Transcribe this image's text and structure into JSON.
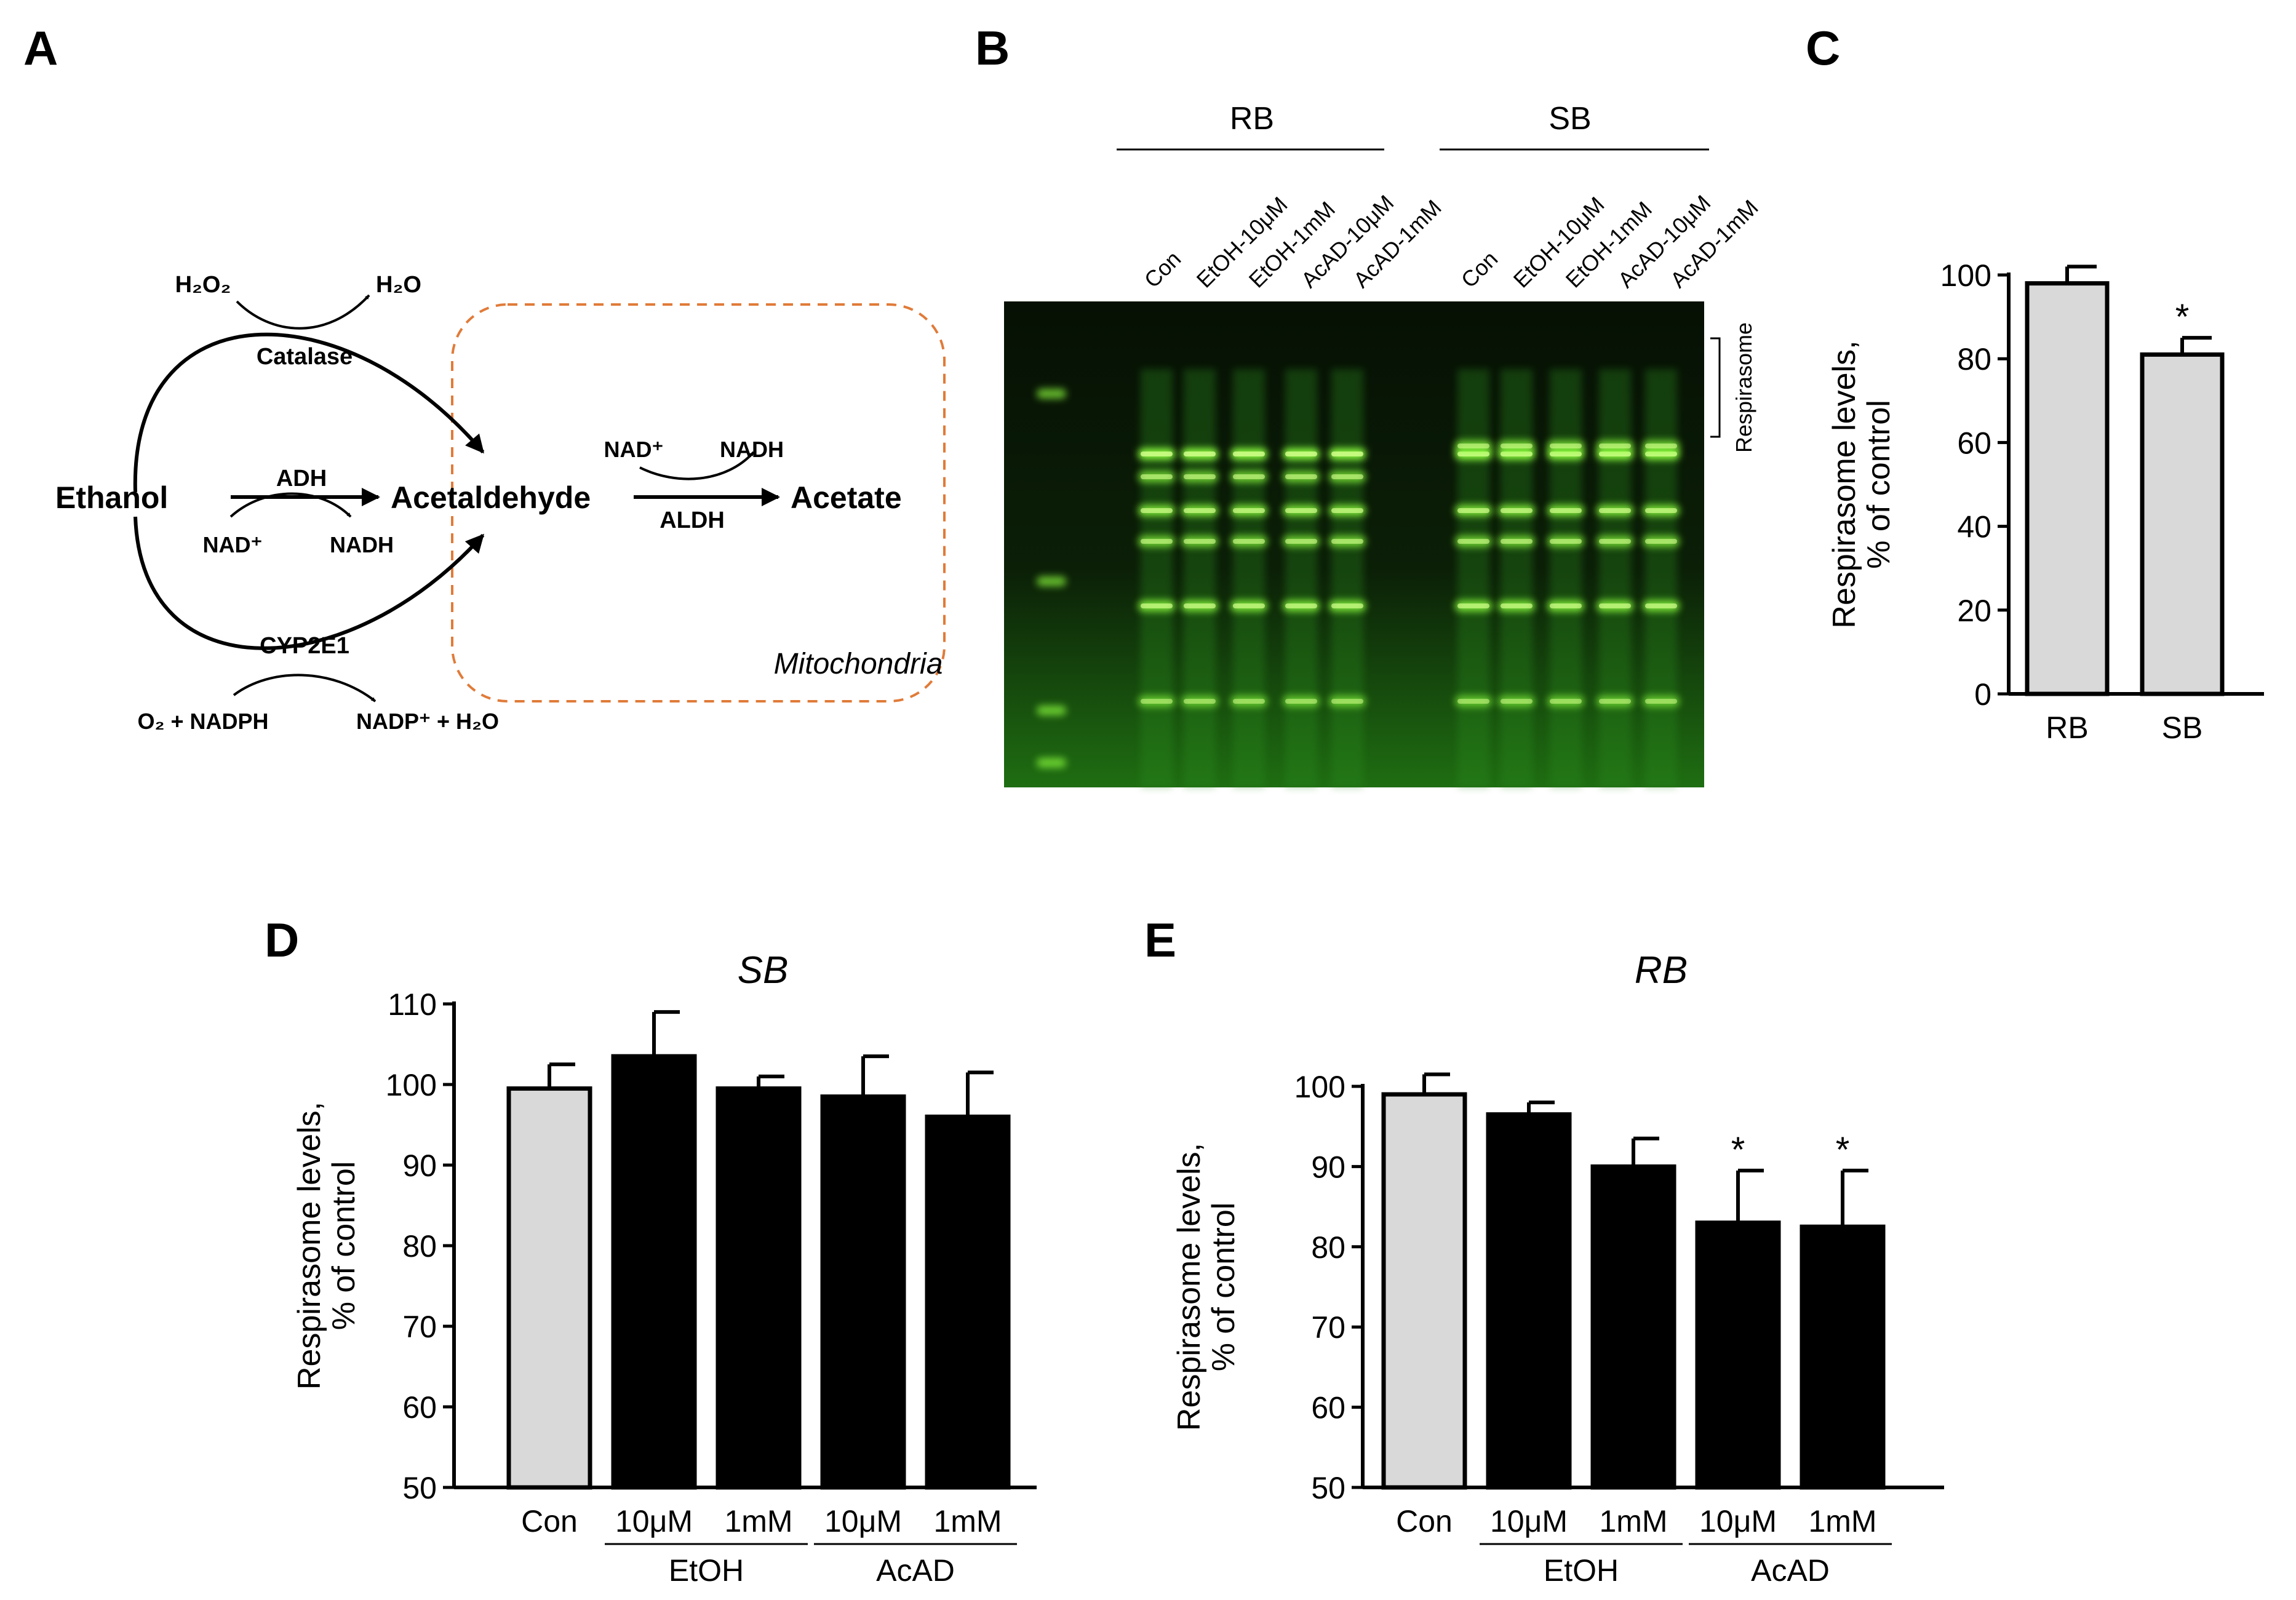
{
  "panel_letters": {
    "a": "A",
    "b": "B",
    "c": "C",
    "d": "D",
    "e": "E"
  },
  "colors": {
    "gray_bar": "#d9d9d9",
    "black_bar": "#000000",
    "mito_border": "#e07b39",
    "gel_background": "#0b1a06",
    "gel_band": "#8cff3c"
  },
  "panel_a": {
    "ethanol": "Ethanol",
    "acetaldehyde": "Acetaldehyde",
    "acetate": "Acetate",
    "catalase": "Catalase",
    "adh": "ADH",
    "aldh": "ALDH",
    "cyp2e1": "CYP2E1",
    "mitochondria": "Mitochondria",
    "h2o2": "H₂O₂",
    "h2o": "H₂O",
    "nad_in": "NAD⁺",
    "nadh_out": "NADH",
    "nad_in_aldh": "NAD⁺",
    "nadh_out_aldh": "NADH",
    "o2_nadph": "O₂ + NADPH",
    "nadp_h2o": "NADP⁺ + H₂O"
  },
  "panel_b": {
    "group_rb": "RB",
    "group_sb": "SB",
    "lanes_rb": [
      "Con",
      "EtOH-10μM",
      "EtOH-1mM",
      "AcAD-10μM",
      "AcAD-1mM"
    ],
    "lanes_sb": [
      "Con",
      "EtOH-10μM",
      "EtOH-1mM",
      "AcAD-10μM",
      "AcAD-1mM"
    ],
    "respirasome_label": "Respirasome"
  },
  "chart_data": [
    {
      "id": "C",
      "type": "bar",
      "categories": [
        "RB",
        "SB"
      ],
      "values": [
        98,
        81
      ],
      "errors": [
        4,
        4
      ],
      "significance": [
        "",
        "*"
      ],
      "bar_colors": [
        "#d9d9d9",
        "#d9d9d9"
      ],
      "title": "",
      "ylabel": [
        "Respirasome levels,",
        "% of control"
      ],
      "ylim": [
        0,
        100
      ],
      "yticks": [
        0,
        20,
        40,
        60,
        80,
        100
      ]
    },
    {
      "id": "D",
      "type": "bar",
      "title": "SB",
      "categories": [
        "Con",
        "10μM",
        "1mM",
        "10μM",
        "1mM"
      ],
      "values": [
        99.5,
        103.5,
        99.5,
        98.5,
        96
      ],
      "errors": [
        3,
        5.5,
        1.5,
        5,
        5.5
      ],
      "significance": [
        "",
        "",
        "",
        "",
        ""
      ],
      "bar_colors": [
        "#d9d9d9",
        "#000000",
        "#000000",
        "#000000",
        "#000000"
      ],
      "groups": [
        {
          "label": "EtOH",
          "from": 1,
          "to": 2
        },
        {
          "label": "AcAD",
          "from": 3,
          "to": 4
        }
      ],
      "ylabel": [
        "Respirasome levels,",
        "% of control"
      ],
      "ylim": [
        50,
        110
      ],
      "yticks": [
        50,
        60,
        70,
        80,
        90,
        100,
        110
      ]
    },
    {
      "id": "E",
      "type": "bar",
      "title": "RB",
      "categories": [
        "Con",
        "10μM",
        "1mM",
        "10μM",
        "1mM"
      ],
      "values": [
        99,
        96.5,
        90,
        83,
        82.5
      ],
      "errors": [
        2.5,
        1.5,
        3.5,
        6.5,
        7
      ],
      "significance": [
        "",
        "",
        "",
        "*",
        "*"
      ],
      "bar_colors": [
        "#d9d9d9",
        "#000000",
        "#000000",
        "#000000",
        "#000000"
      ],
      "groups": [
        {
          "label": "EtOH",
          "from": 1,
          "to": 2
        },
        {
          "label": "AcAD",
          "from": 3,
          "to": 4
        }
      ],
      "ylabel": [
        "Respirasome levels,",
        "% of control"
      ],
      "ylim": [
        50,
        100
      ],
      "yticks": [
        50,
        60,
        70,
        80,
        90,
        100
      ]
    }
  ]
}
